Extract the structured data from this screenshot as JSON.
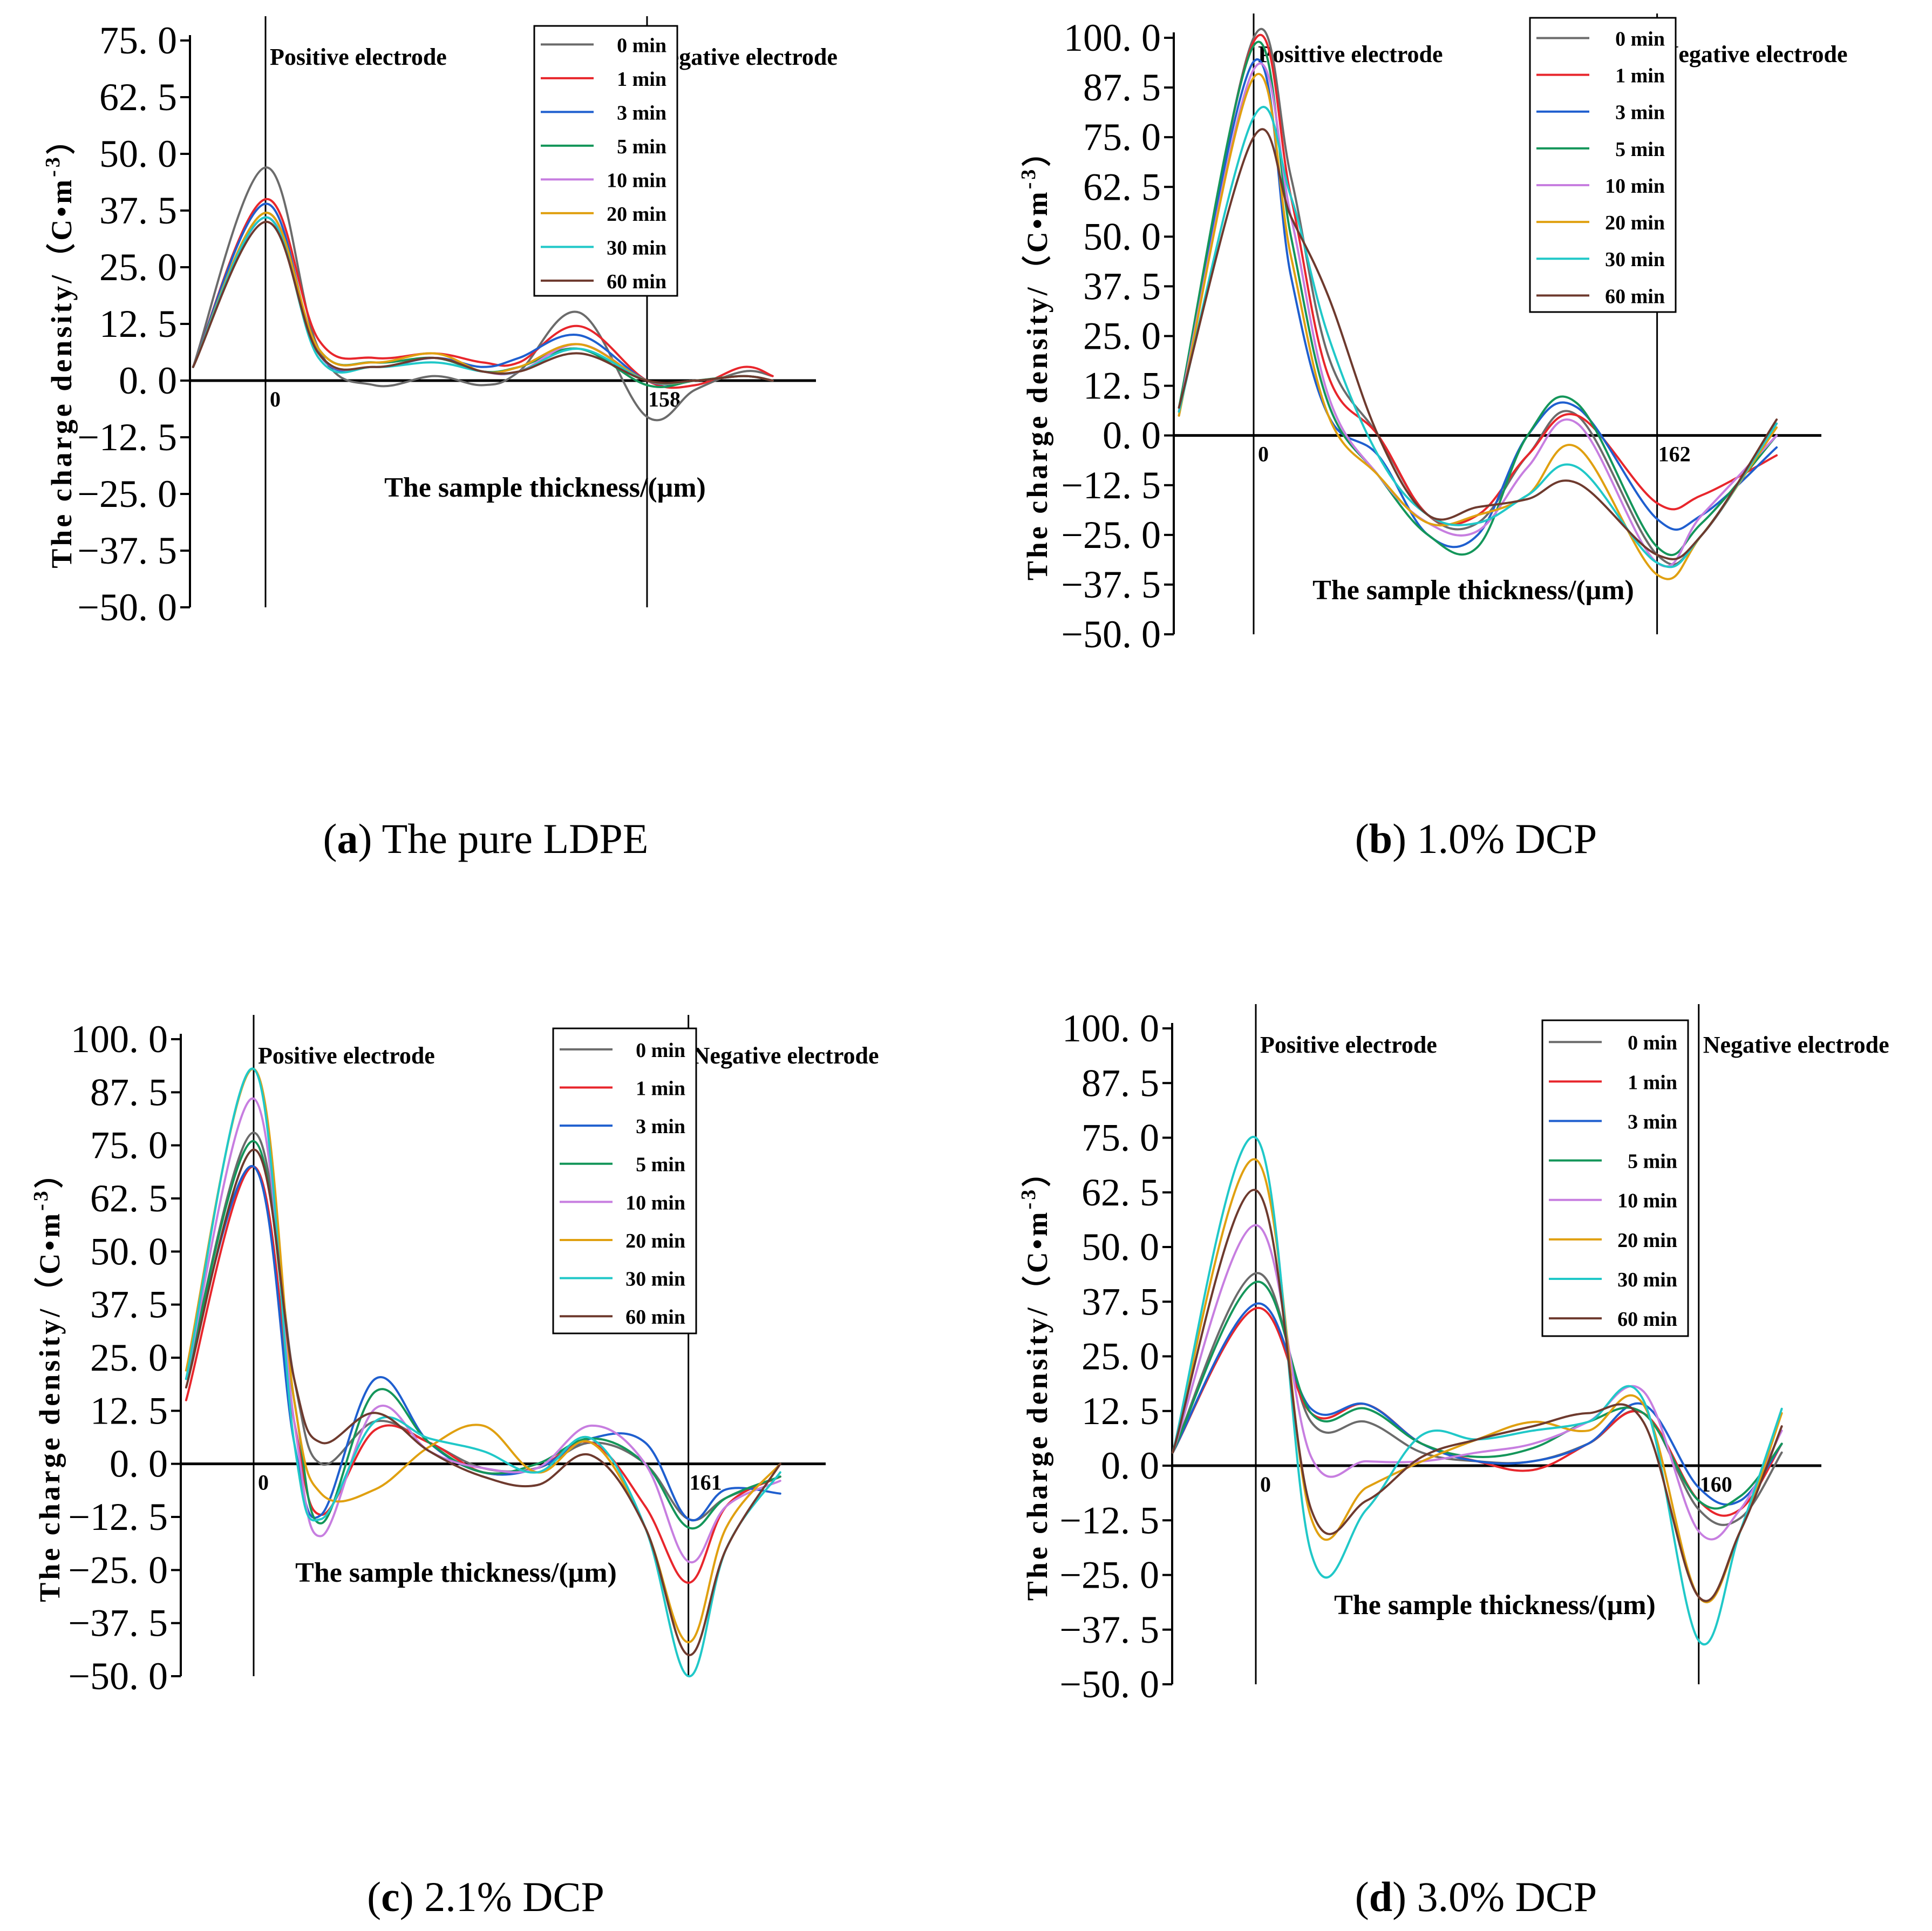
{
  "figure": {
    "series_names": [
      "0 min",
      "1 min",
      "3 min",
      "5 min",
      "10 min",
      "20 min",
      "30 min",
      "60 min"
    ],
    "series_colors": [
      "#6b6b6b",
      "#e8262c",
      "#1f5fcf",
      "#14965a",
      "#c77ee0",
      "#e0a010",
      "#20c8c8",
      "#6e3a2e"
    ]
  },
  "chart_data": [
    {
      "type": "line",
      "panel": "a",
      "caption_letter": "a",
      "caption_text": "The pure LDPE",
      "ylabel_main": "The charge density/（C•m",
      "ylabel_exp": "-3",
      "ylabel_close": "）",
      "xlabel": "The sample thickness/(μm)",
      "positive_label": "Positive electrode",
      "negative_label": "Negative electrode",
      "zero_label": "0",
      "thickness_label": "158",
      "thickness_um": 158,
      "ylim": [
        -50,
        75
      ],
      "yticks": [
        "75. 0",
        "62. 5",
        "50. 0",
        "37. 5",
        "25. 0",
        "12. 5",
        "0. 0",
        "−12. 5",
        "−25. 0",
        "−37. 5",
        "−50. 0"
      ],
      "x": [
        -30,
        0,
        22,
        45,
        70,
        90,
        105,
        130,
        158,
        178,
        198,
        210
      ],
      "series": [
        {
          "name": "0 min",
          "values": [
            3,
            47,
            7,
            -1,
            1,
            -1,
            2,
            15,
            -8,
            -2,
            2,
            1
          ]
        },
        {
          "name": "1 min",
          "values": [
            3,
            40,
            9,
            5,
            6,
            4,
            4,
            12,
            0,
            -1,
            3,
            1
          ]
        },
        {
          "name": "3 min",
          "values": [
            3,
            39,
            6,
            3,
            5,
            3,
            5,
            10,
            0,
            0,
            1,
            0
          ]
        },
        {
          "name": "5 min",
          "values": [
            3,
            37,
            7,
            4,
            5,
            2,
            3,
            7,
            -1,
            0,
            1,
            0
          ]
        },
        {
          "name": "10 min",
          "values": [
            3,
            36,
            6,
            3,
            5,
            2,
            2,
            8,
            0,
            0,
            1,
            0
          ]
        },
        {
          "name": "20 min",
          "values": [
            3,
            37,
            7,
            4,
            6,
            2,
            3,
            8,
            0,
            0,
            1,
            0
          ]
        },
        {
          "name": "30 min",
          "values": [
            3,
            36,
            5,
            3,
            4,
            2,
            2,
            7,
            0,
            0,
            1,
            0
          ]
        },
        {
          "name": "60 min",
          "values": [
            3,
            35,
            6,
            3,
            5,
            2,
            2,
            6,
            0,
            0,
            1,
            0
          ]
        }
      ]
    },
    {
      "type": "line",
      "panel": "b",
      "caption_letter": "b",
      "caption_text": "1.0% DCP",
      "ylabel_main": "The charge density/（C•m",
      "ylabel_exp": "-3",
      "ylabel_close": "）",
      "xlabel": "The sample thickness/(μm)",
      "positive_label": "Posittive electrode",
      "negative_label": "Negative electrode",
      "zero_label": "0",
      "thickness_label": "162",
      "thickness_um": 162,
      "ylim": [
        -50,
        100
      ],
      "yticks": [
        "100. 0",
        "87. 5",
        "75. 0",
        "62. 5",
        "50. 0",
        "37. 5",
        "25. 0",
        "12. 5",
        "0. 0",
        "−12. 5",
        "−25. 0",
        "−37. 5",
        "−50. 0"
      ],
      "x": [
        -30,
        0,
        15,
        30,
        50,
        70,
        90,
        110,
        130,
        162,
        180,
        210
      ],
      "series": [
        {
          "name": "0 min",
          "values": [
            5,
            100,
            65,
            20,
            0,
            -20,
            -22,
            -5,
            5,
            -30,
            -25,
            3
          ]
        },
        {
          "name": "1 min",
          "values": [
            6,
            99,
            60,
            15,
            0,
            -20,
            -20,
            -5,
            5,
            -17,
            -15,
            -5
          ]
        },
        {
          "name": "3 min",
          "values": [
            6,
            94,
            40,
            5,
            -5,
            -25,
            -25,
            0,
            7,
            -21,
            -20,
            -3
          ]
        },
        {
          "name": "5 min",
          "values": [
            7,
            98,
            50,
            8,
            -10,
            -25,
            -28,
            0,
            8,
            -28,
            -22,
            0
          ]
        },
        {
          "name": "10 min",
          "values": [
            6,
            92,
            55,
            10,
            -10,
            -22,
            -24,
            -8,
            3,
            -32,
            -20,
            0
          ]
        },
        {
          "name": "20 min",
          "values": [
            5,
            90,
            45,
            5,
            -10,
            -22,
            -20,
            -15,
            -3,
            -35,
            -25,
            2
          ]
        },
        {
          "name": "30 min",
          "values": [
            6,
            80,
            60,
            25,
            -5,
            -20,
            -22,
            -15,
            -8,
            -32,
            -25,
            3
          ]
        },
        {
          "name": "60 min",
          "values": [
            7,
            75,
            55,
            35,
            0,
            -20,
            -18,
            -16,
            -12,
            -30,
            -25,
            4
          ]
        }
      ]
    },
    {
      "type": "line",
      "panel": "c",
      "caption_letter": "c",
      "caption_text": "2.1% DCP",
      "ylabel_main": "The charge density/（C•m",
      "ylabel_exp": "-3",
      "ylabel_close": "）",
      "xlabel": "The sample thickness/(μm)",
      "positive_label": "Positive electrode",
      "negative_label": "Negative electrode",
      "zero_label": "0",
      "thickness_label": "161",
      "thickness_um": 161,
      "ylim": [
        -50,
        100
      ],
      "yticks": [
        "100. 0",
        "87. 5",
        "75. 0",
        "62. 5",
        "50. 0",
        "37. 5",
        "25. 0",
        "12. 5",
        "0. 0",
        "−12. 5",
        "−25. 0",
        "−37. 5",
        "−50. 0"
      ],
      "x": [
        -25,
        0,
        15,
        25,
        45,
        65,
        85,
        105,
        125,
        145,
        161,
        175,
        195
      ],
      "series": [
        {
          "name": "0 min",
          "values": [
            20,
            78,
            20,
            0,
            10,
            5,
            -1,
            -1,
            5,
            0,
            -13,
            -8,
            -3
          ]
        },
        {
          "name": "1 min",
          "values": [
            15,
            70,
            10,
            -12,
            8,
            5,
            -2,
            -1,
            5,
            -10,
            -28,
            -10,
            -3
          ]
        },
        {
          "name": "3 min",
          "values": [
            20,
            70,
            5,
            -12,
            20,
            5,
            -2,
            -1,
            6,
            5,
            -13,
            -6,
            -7
          ]
        },
        {
          "name": "5 min",
          "values": [
            20,
            76,
            15,
            -14,
            17,
            5,
            -2,
            0,
            6,
            0,
            -15,
            -8,
            -3
          ]
        },
        {
          "name": "10 min",
          "values": [
            20,
            86,
            10,
            -17,
            13,
            3,
            -1,
            -1,
            9,
            0,
            -23,
            -10,
            -4
          ]
        },
        {
          "name": "20 min",
          "values": [
            22,
            93,
            15,
            -7,
            -6,
            4,
            9,
            -2,
            5,
            -15,
            -42,
            -15,
            0
          ]
        },
        {
          "name": "30 min",
          "values": [
            20,
            93,
            5,
            -13,
            10,
            6,
            3,
            -2,
            6,
            -15,
            -50,
            -20,
            -2
          ]
        },
        {
          "name": "60 min",
          "values": [
            18,
            74,
            20,
            5,
            12,
            3,
            -3,
            -5,
            2,
            -15,
            -45,
            -20,
            0
          ]
        }
      ]
    },
    {
      "type": "line",
      "panel": "d",
      "caption_letter": "d",
      "caption_text": "3.0% DCP",
      "ylabel_main": "The charge density/（C•m",
      "ylabel_exp": "-3",
      "ylabel_close": "）",
      "xlabel": "The sample thickness/(μm)",
      "positive_label": "Positive electrode",
      "negative_label": "Negative electrode",
      "zero_label": "0",
      "thickness_label": "160",
      "thickness_um": 160,
      "ylim": [
        -50,
        100
      ],
      "yticks": [
        "100. 0",
        "87. 5",
        "75. 0",
        "62. 5",
        "50. 0",
        "37. 5",
        "25. 0",
        "12. 5",
        "0. 0",
        "−12. 5",
        "−25. 0",
        "−37. 5",
        "−50. 0"
      ],
      "x": [
        -30,
        0,
        20,
        40,
        60,
        80,
        100,
        120,
        140,
        160,
        175,
        190
      ],
      "series": [
        {
          "name": "0 min",
          "values": [
            3,
            44,
            10,
            10,
            3,
            1,
            1,
            5,
            12,
            -10,
            -12,
            3
          ]
        },
        {
          "name": "1 min",
          "values": [
            3,
            36,
            12,
            14,
            5,
            1,
            -1,
            5,
            12,
            -8,
            -10,
            5
          ]
        },
        {
          "name": "3 min",
          "values": [
            3,
            37,
            13,
            14,
            5,
            1,
            1,
            5,
            14,
            -5,
            -8,
            5
          ]
        },
        {
          "name": "5 min",
          "values": [
            3,
            42,
            12,
            13,
            5,
            2,
            4,
            10,
            12,
            -8,
            -7,
            5
          ]
        },
        {
          "name": "10 min",
          "values": [
            3,
            55,
            2,
            1,
            1,
            3,
            5,
            10,
            17,
            -15,
            -10,
            8
          ]
        },
        {
          "name": "20 min",
          "values": [
            3,
            70,
            -12,
            -5,
            1,
            6,
            10,
            8,
            14,
            -30,
            -15,
            12
          ]
        },
        {
          "name": "30 min",
          "values": [
            3,
            75,
            -20,
            -10,
            7,
            6,
            8,
            10,
            15,
            -40,
            -15,
            13
          ]
        },
        {
          "name": "60 min",
          "values": [
            3,
            63,
            -10,
            -8,
            2,
            6,
            9,
            12,
            10,
            -30,
            -15,
            9
          ]
        }
      ]
    }
  ]
}
